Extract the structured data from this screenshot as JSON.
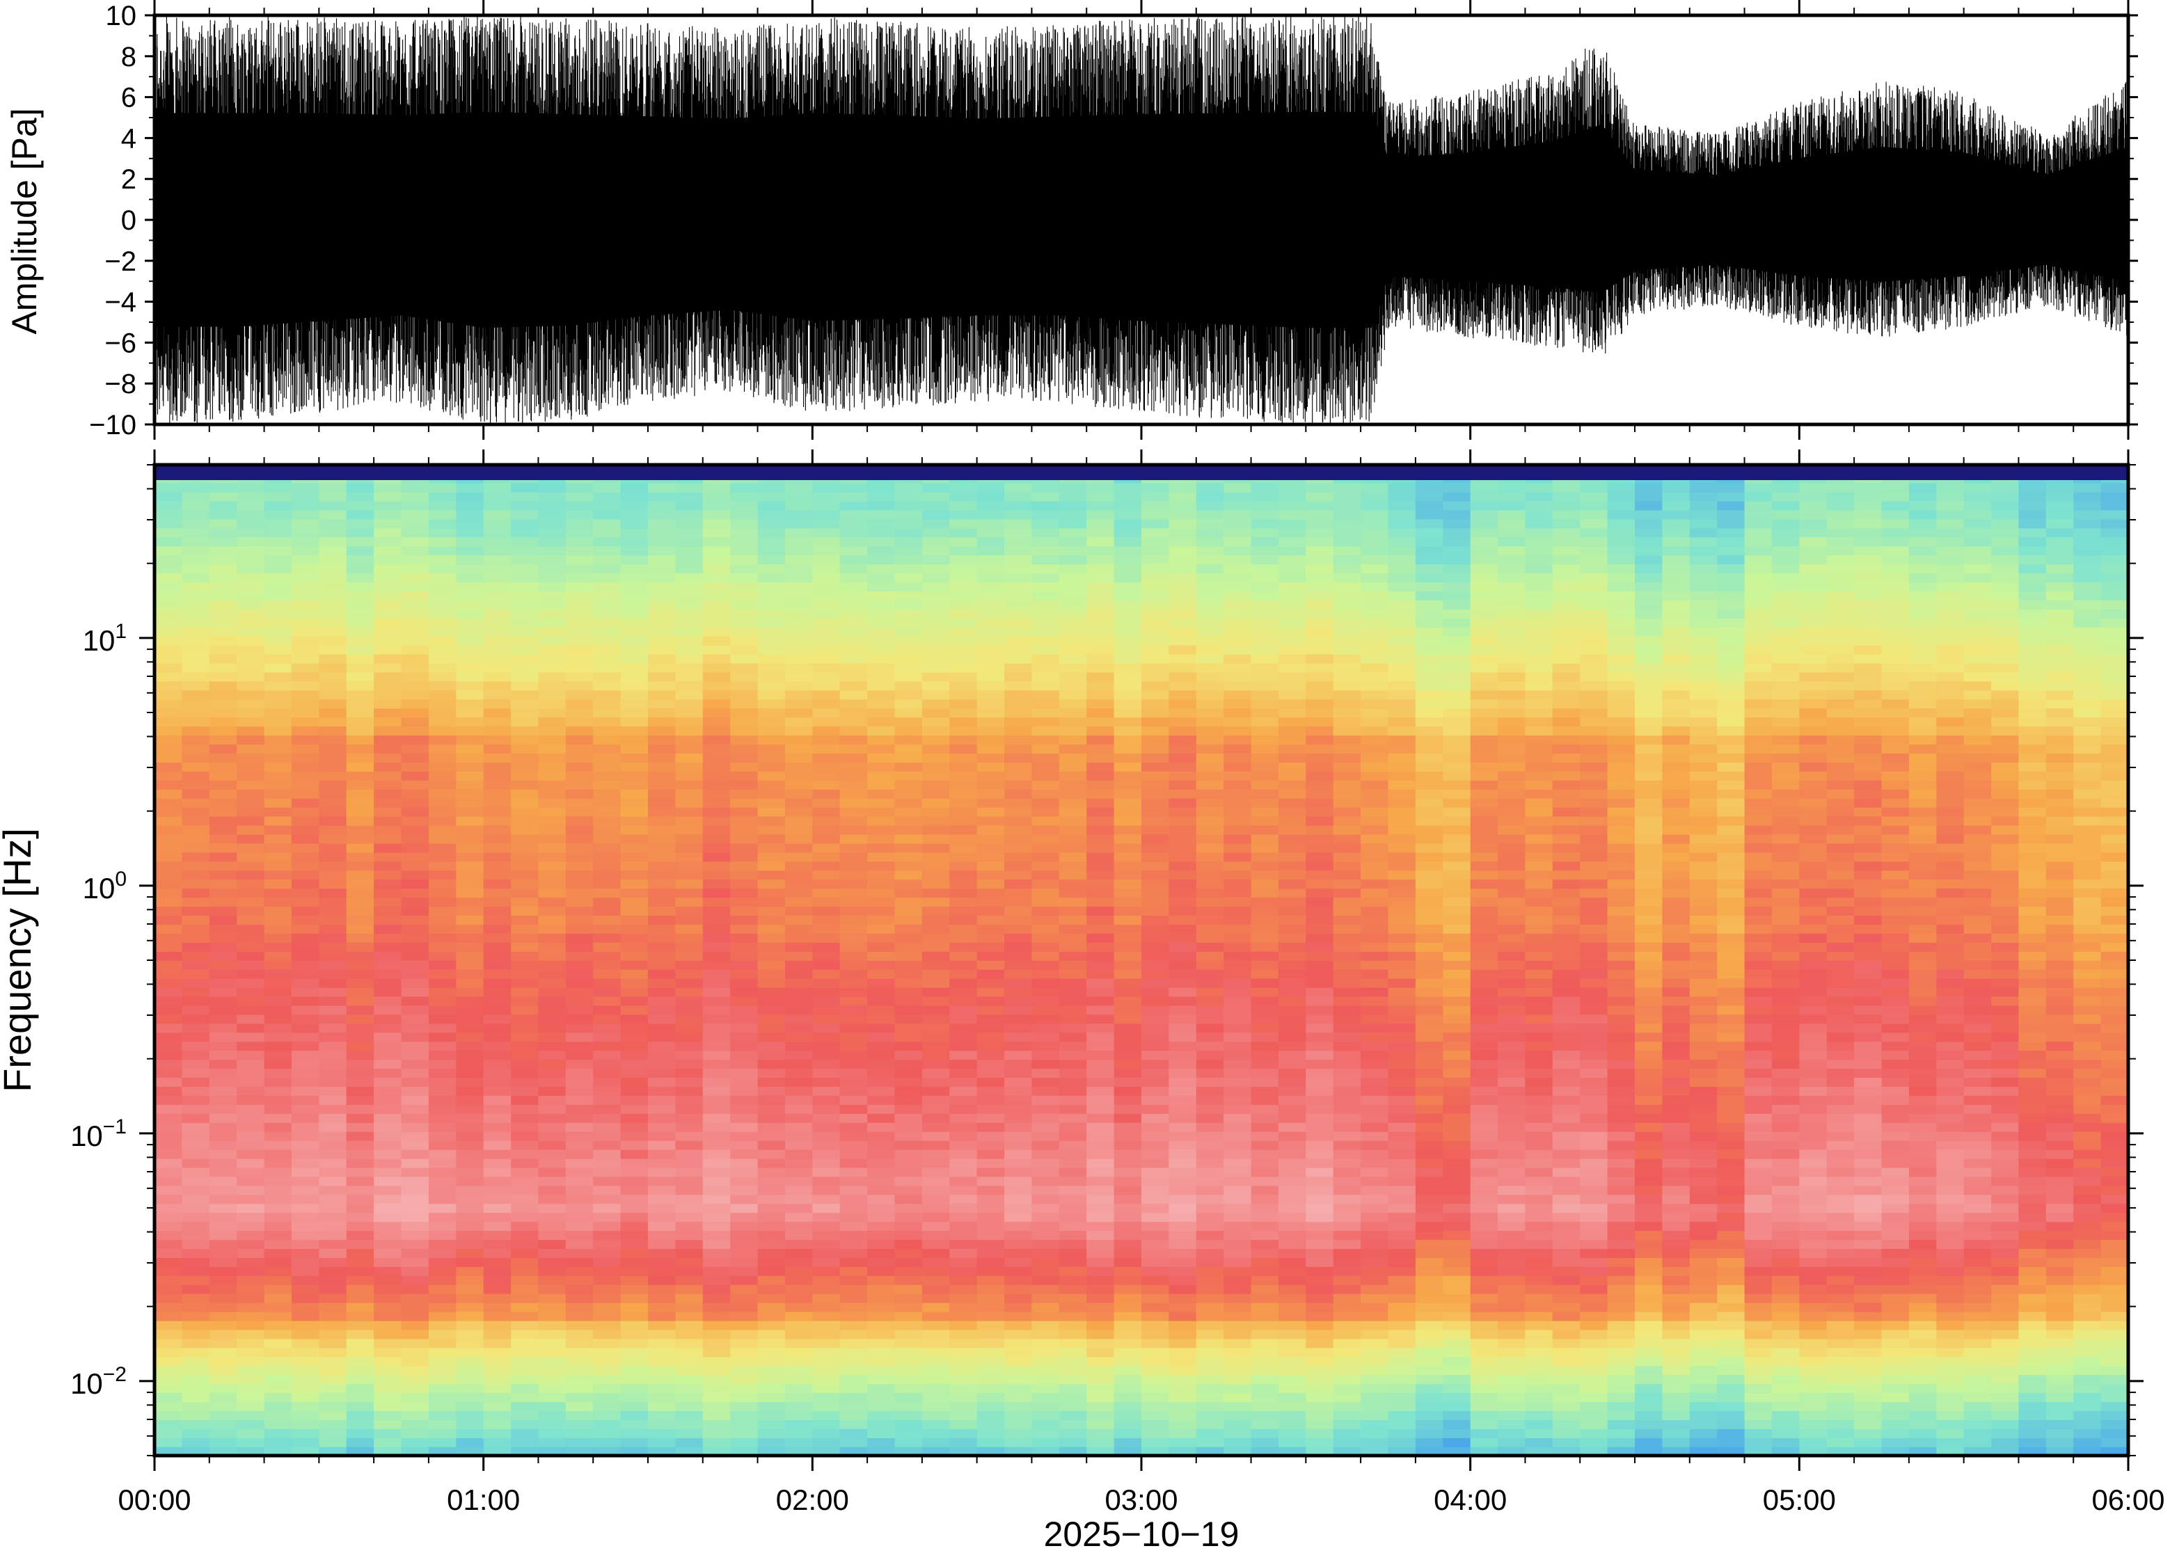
{
  "chart_data": [
    {
      "type": "line",
      "panel": "waveform",
      "ylabel": "Amplitude [Pa]",
      "ylim": [
        -10,
        10
      ],
      "y_ticks": [
        10,
        8,
        6,
        4,
        2,
        0,
        -2,
        -4,
        -6,
        -8,
        -10
      ],
      "y_tick_labels": [
        "10",
        "8",
        "6",
        "4",
        "2",
        "0",
        "−2",
        "−4",
        "−6",
        "−8",
        "−10"
      ],
      "xlim": [
        "00:00",
        "06:00"
      ],
      "envelope": {
        "x_hours": [
          0.0,
          0.25,
          0.5,
          0.75,
          1.0,
          1.25,
          1.5,
          1.75,
          2.0,
          2.25,
          2.5,
          2.75,
          3.0,
          3.25,
          3.5,
          3.7,
          3.75,
          4.0,
          4.25,
          4.4,
          4.5,
          4.75,
          5.0,
          5.25,
          5.5,
          5.75,
          6.0
        ],
        "upper": [
          9.5,
          9.5,
          9.5,
          9.3,
          9.6,
          9.4,
          9.2,
          9.0,
          9.5,
          9.3,
          9.0,
          9.2,
          9.4,
          9.5,
          9.6,
          9.6,
          5.5,
          6.0,
          7.0,
          8.5,
          4.5,
          4.0,
          5.5,
          6.5,
          6.0,
          4.0,
          6.5
        ],
        "lower": [
          -9.5,
          -9.5,
          -9.0,
          -8.5,
          -9.6,
          -9.4,
          -8.5,
          -8.0,
          -9.0,
          -8.8,
          -8.5,
          -8.5,
          -9.0,
          -9.3,
          -9.6,
          -9.6,
          -5.0,
          -5.5,
          -6.0,
          -6.5,
          -4.5,
          -4.0,
          -5.0,
          -5.5,
          -5.0,
          -4.0,
          -5.5
        ]
      }
    },
    {
      "type": "heatmap",
      "panel": "spectrogram",
      "ylabel": "Frequency [Hz]",
      "yscale": "log",
      "ylim": [
        0.005,
        50
      ],
      "y_ticks": [
        0.01,
        0.1,
        1,
        10
      ],
      "y_tick_labels": [
        {
          "base": "10",
          "exp": "−2"
        },
        {
          "base": "10",
          "exp": "−1"
        },
        {
          "base": "10",
          "exp": "0"
        },
        {
          "base": "10",
          "exp": "1"
        }
      ],
      "colormap": [
        "#3a2fcf",
        "#4aa8ea",
        "#7fe3cf",
        "#c9f59a",
        "#f3e779",
        "#f7a94b",
        "#ef5b5b",
        "#f5a3a3",
        "#fad7d7"
      ],
      "xlabel": "2025−10−19",
      "x_ticks": [
        "00:00",
        "01:00",
        "02:00",
        "03:00",
        "04:00",
        "05:00",
        "06:00"
      ],
      "xlim": [
        "00:00",
        "06:00"
      ]
    }
  ]
}
